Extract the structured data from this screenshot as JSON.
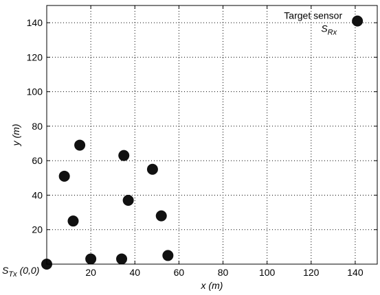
{
  "chart_data": {
    "type": "scatter",
    "xlabel": "x (m)",
    "ylabel": "y (m)",
    "xlim": [
      0,
      150
    ],
    "ylim": [
      0,
      150
    ],
    "xticks": [
      20,
      40,
      60,
      80,
      100,
      120,
      140
    ],
    "yticks": [
      20,
      40,
      60,
      80,
      100,
      120,
      140
    ],
    "grid": true,
    "point_color": "#111111",
    "points": [
      {
        "x": 0,
        "y": 0
      },
      {
        "x": 20,
        "y": 3
      },
      {
        "x": 34,
        "y": 3
      },
      {
        "x": 55,
        "y": 5
      },
      {
        "x": 12,
        "y": 25
      },
      {
        "x": 37,
        "y": 37
      },
      {
        "x": 52,
        "y": 28
      },
      {
        "x": 8,
        "y": 51
      },
      {
        "x": 48,
        "y": 55
      },
      {
        "x": 35,
        "y": 63
      },
      {
        "x": 15,
        "y": 69
      },
      {
        "x": 141,
        "y": 141
      }
    ],
    "annotations": {
      "target_line1": "Target sensor",
      "target_sub_main": "S",
      "target_sub": "Rx",
      "origin_main": "S",
      "origin_sub": "Tx",
      "origin_coord": "(0,0)"
    }
  }
}
